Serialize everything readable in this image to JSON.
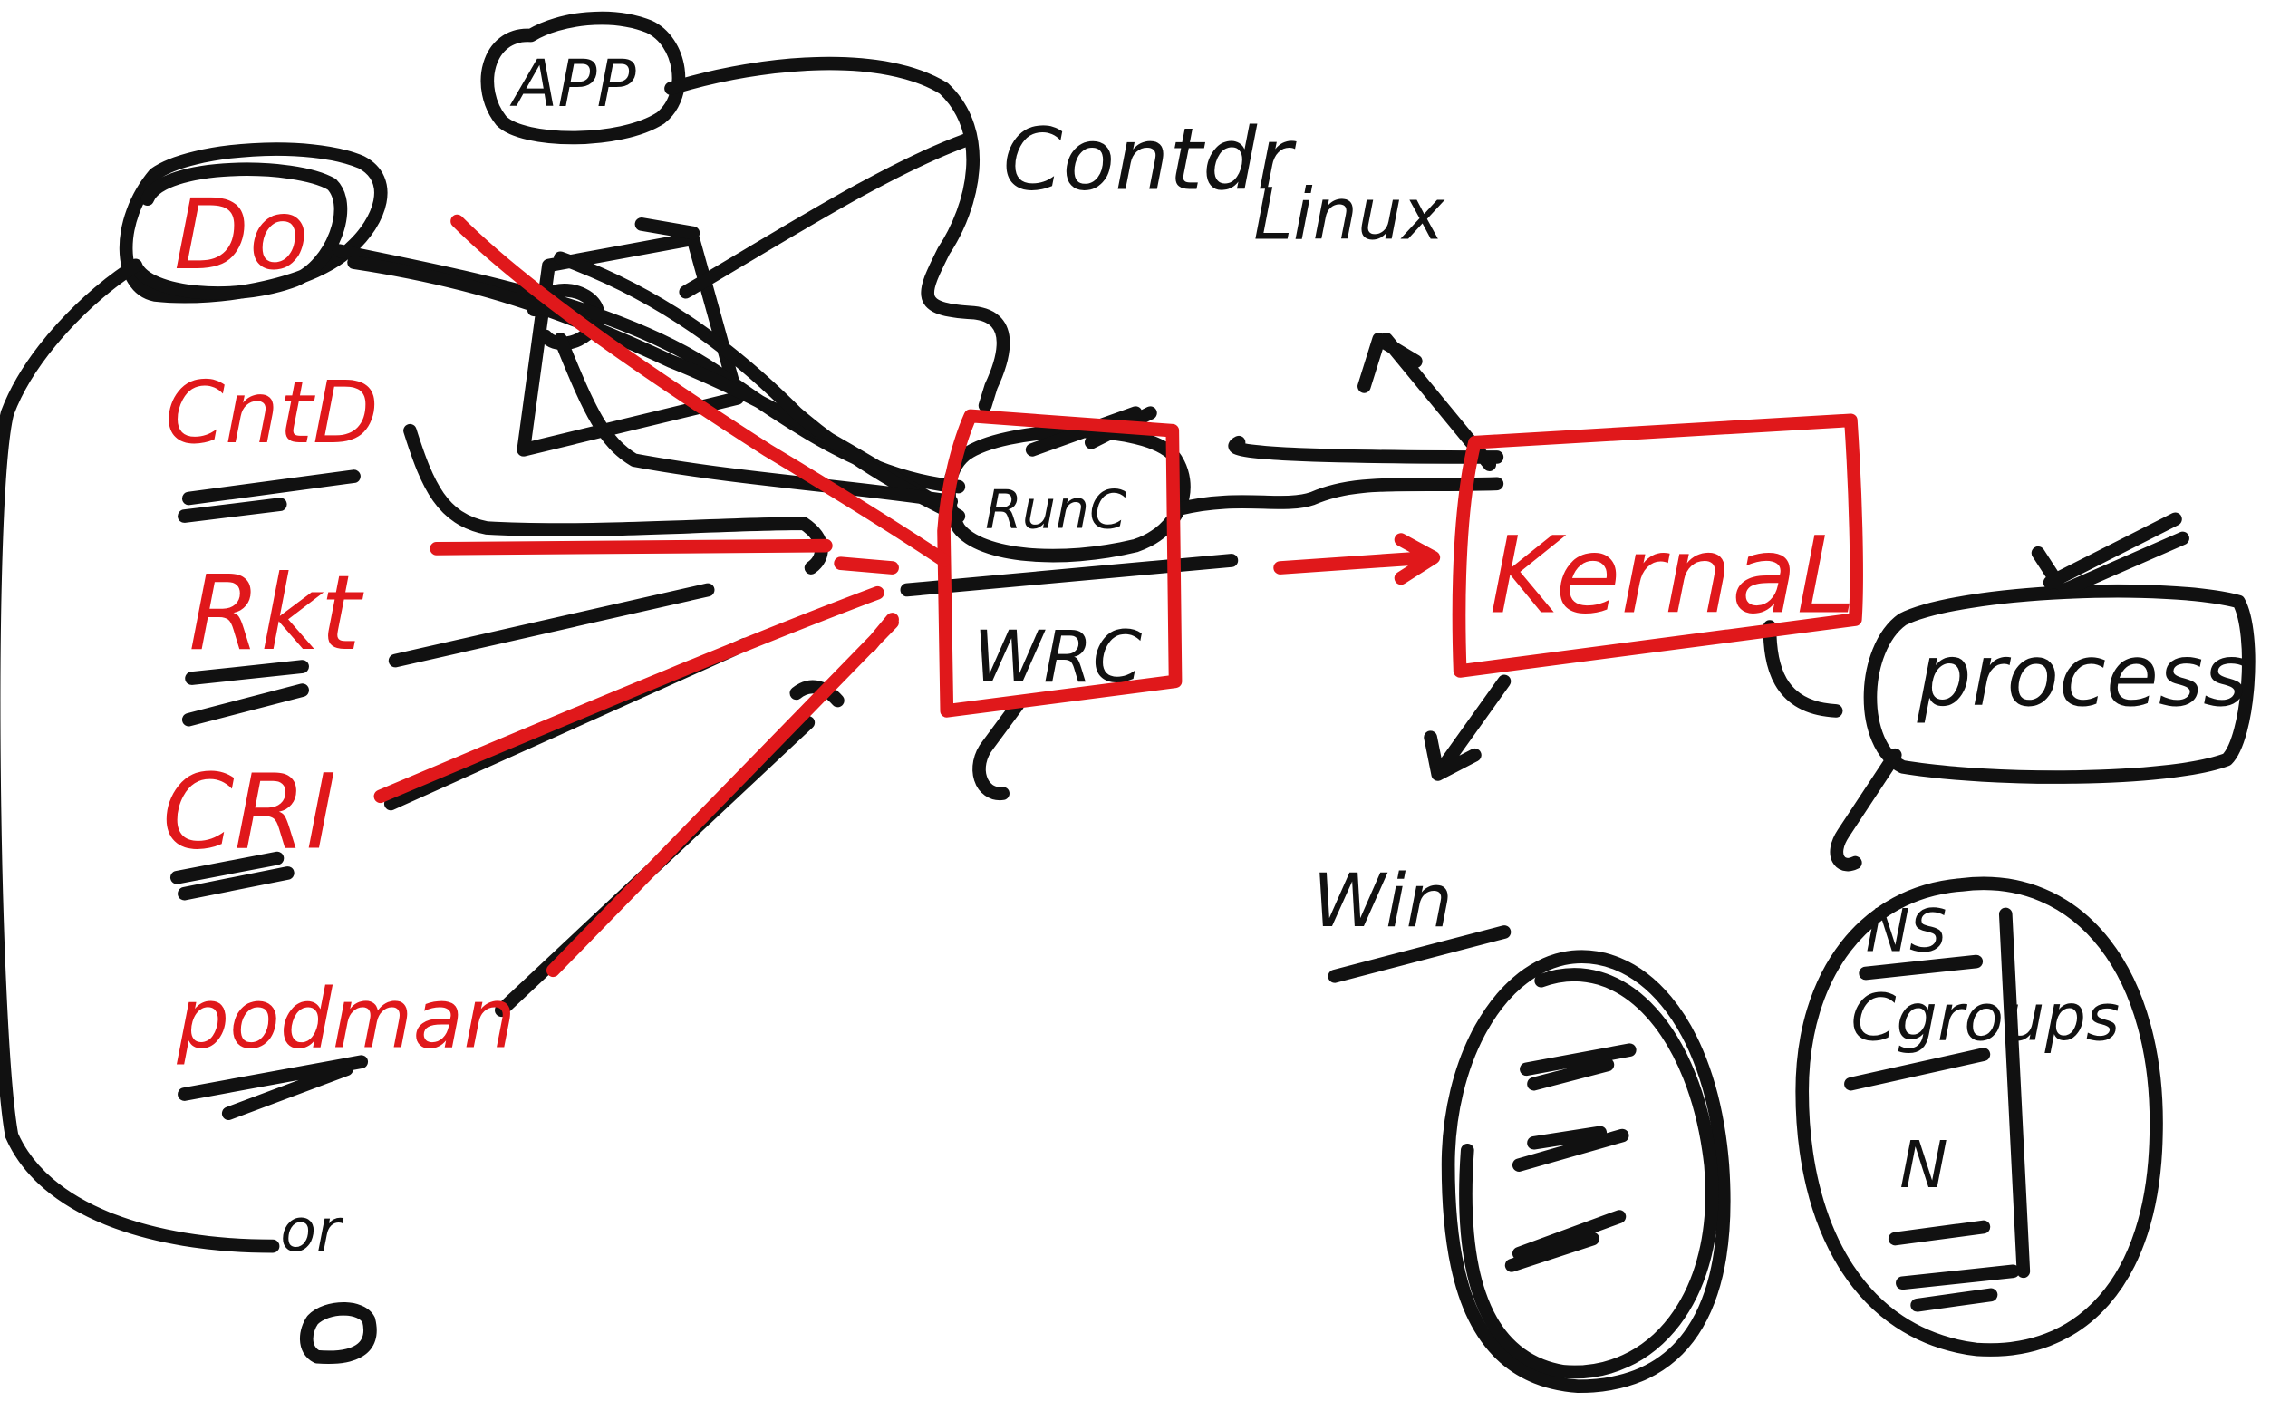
{
  "labels": {
    "app": "APP",
    "docker": "Do",
    "containerd": "CntD",
    "rkt": "Rkt",
    "cri": "CRI",
    "podman": "podman",
    "or": "or",
    "runc": "RunC",
    "wrc": "WRC",
    "kernel": "KernaL",
    "process": "process",
    "container": "Contdr",
    "linux": "Linux",
    "win": "Win",
    "ns": "NS",
    "cgroups": "Cgroups",
    "n": "N"
  },
  "colors": {
    "ink": "#111111",
    "accent": "#e0181b",
    "background": "#ffffff"
  }
}
